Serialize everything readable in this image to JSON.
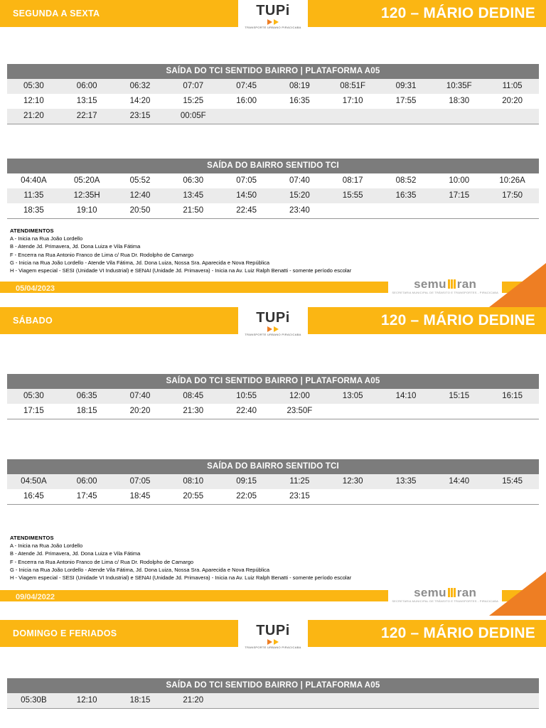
{
  "route_title": "120 – MÁRIO DEDINE",
  "logo": {
    "name": "TUPi",
    "tagline": "TRANSPORTE URBANO PIRACICABA"
  },
  "semuttran": {
    "text_left": "semu",
    "text_right": "ran",
    "caption": "SECRETARIA MUNICIPAL DE TRÂNSITO E TRANSPORTES - PIRACICABA"
  },
  "colors": {
    "yellow": "#FBB613",
    "orange": "#EE7E23",
    "table_header_gray": "#7C7C7C",
    "stripe_gray": "#EBEBEB"
  },
  "sections": [
    {
      "id": "weekday",
      "day_label": "SEGUNDA A SEXTA",
      "date": "05/04/2023",
      "tables": [
        {
          "title": "SAÍDA DO TCI SENTIDO BAIRRO | PLATAFORMA A05",
          "rows": [
            [
              "05:30",
              "06:00",
              "06:32",
              "07:07",
              "07:45",
              "08:19",
              "08:51F",
              "09:31",
              "10:35F",
              "11:05"
            ],
            [
              "12:10",
              "13:15",
              "14:20",
              "15:25",
              "16:00",
              "16:35",
              "17:10",
              "17:55",
              "18:30",
              "20:20"
            ],
            [
              "21:20",
              "22:17",
              "23:15",
              "00:05F",
              "",
              "",
              "",
              "",
              "",
              ""
            ]
          ]
        },
        {
          "title": "SAÍDA DO BAIRRO SENTIDO TCI",
          "rows": [
            [
              "04:40A",
              "05:20A",
              "05:52",
              "06:30",
              "07:05",
              "07:40",
              "08:17",
              "08:52",
              "10:00",
              "10:26A"
            ],
            [
              "11:35",
              "12:35H",
              "12:40",
              "13:45",
              "14:50",
              "15:20",
              "15:55",
              "16:35",
              "17:15",
              "17:50"
            ],
            [
              "18:35",
              "19:10",
              "20:50",
              "21:50",
              "22:45",
              "23:40",
              "",
              "",
              "",
              ""
            ]
          ]
        }
      ],
      "notes_heading": "ATENDIMENTOS",
      "notes": [
        "A - Inicia na Rua João Lordello",
        "B - Atende Jd. Primavera, Jd. Dona Luiza e Vila Fátima",
        "F - Encerra na Rua Antonio Franco de Lima c/ Rua Dr. Rodolpho de Camargo",
        "G - Inicia na Rua João Lordello - Atende Vila Fátima, Jd. Dona Luiza, Nossa Sra. Aparecida e Nova República",
        "H - Viagem especial - SESI (Unidade VI Industrial) e SENAI (Unidade Jd. Primavera) - Inicia na Av. Luiz Ralph Benatti - somente período escolar"
      ]
    },
    {
      "id": "saturday",
      "day_label": "SÁBADO",
      "date": "09/04/2022",
      "tables": [
        {
          "title": "SAÍDA DO TCI SENTIDO BAIRRO | PLATAFORMA A05",
          "rows": [
            [
              "05:30",
              "06:35",
              "07:40",
              "08:45",
              "10:55",
              "12:00",
              "13:05",
              "14:10",
              "15:15",
              "16:15"
            ],
            [
              "17:15",
              "18:15",
              "20:20",
              "21:30",
              "22:40",
              "23:50F",
              "",
              "",
              "",
              ""
            ]
          ]
        },
        {
          "title": "SAÍDA DO BAIRRO SENTIDO TCI",
          "rows": [
            [
              "04:50A",
              "06:00",
              "07:05",
              "08:10",
              "09:15",
              "11:25",
              "12:30",
              "13:35",
              "14:40",
              "15:45"
            ],
            [
              "16:45",
              "17:45",
              "18:45",
              "20:55",
              "22:05",
              "23:15",
              "",
              "",
              "",
              ""
            ]
          ]
        }
      ],
      "notes_heading": "ATENDIMENTOS",
      "notes": [
        "A - Inicia na Rua João Lordello",
        "B - Atende Jd. Primavera, Jd. Dona Luiza e Vila Fátima",
        "F - Encerra na Rua Antonio Franco de Lima c/ Rua Dr. Rodolpho de Camargo",
        "G - Inicia na Rua João Lordello - Atende Vila Fátima, Jd. Dona Luiza, Nossa Sra. Aparecida e Nova República",
        "H - Viagem especial - SESI (Unidade VI Industrial) e SENAI (Unidade Jd. Primavera) - Inicia na Av. Luiz Ralph Benatti - somente período escolar"
      ]
    },
    {
      "id": "sunday",
      "day_label": "DOMINGO E FERIADOS",
      "tables": [
        {
          "title": "SAÍDA DO TCI SENTIDO BAIRRO | PLATAFORMA A05",
          "rows": [
            [
              "05:30B",
              "12:10",
              "18:15",
              "21:20",
              "",
              "",
              "",
              "",
              "",
              ""
            ]
          ]
        }
      ]
    }
  ]
}
